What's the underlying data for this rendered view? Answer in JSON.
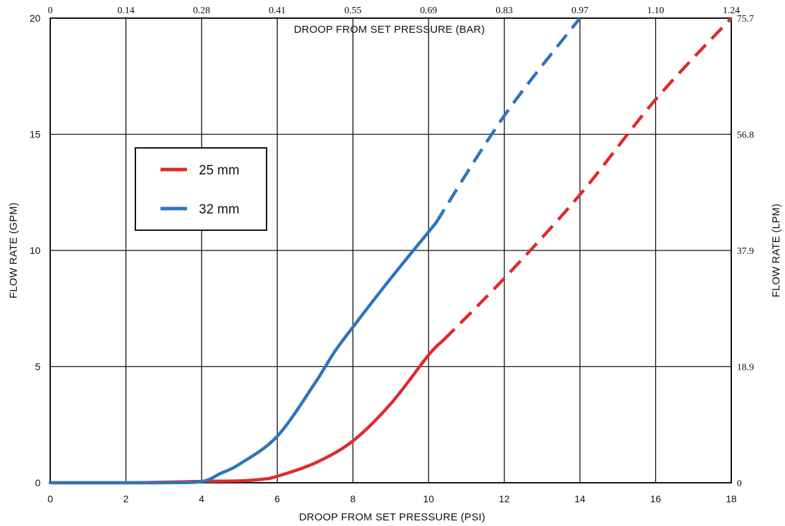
{
  "chart_data": {
    "type": "line",
    "title": "",
    "xlabel": "DROOP FROM SET PRESSURE (PSI)",
    "x2label": "DROOP FROM SET PRESSURE (BAR)",
    "ylabel": "FLOW RATE (GPM)",
    "y2label": "FLOW RATE (LPM)",
    "xlim": [
      0,
      18
    ],
    "ylim": [
      0,
      20
    ],
    "x_ticks": [
      "0",
      "2",
      "4",
      "6",
      "8",
      "10",
      "12",
      "14",
      "16",
      "18"
    ],
    "x2_ticks": [
      "0",
      "0.14",
      "0.28",
      "0.41",
      "0.55",
      "0.69",
      "0.83",
      "0.97",
      "1.10",
      "1.24"
    ],
    "y_ticks": [
      "0",
      "5",
      "10",
      "15",
      "20"
    ],
    "y2_ticks": [
      "0",
      "18.9",
      "37.9",
      "56.8",
      "75.7"
    ],
    "grid": true,
    "legend_position": "upper-left",
    "series": [
      {
        "name": "25 mm",
        "color": "#dd2b2b",
        "solid_points": [
          [
            0,
            0
          ],
          [
            2,
            0
          ],
          [
            3,
            0.02
          ],
          [
            4,
            0.06
          ],
          [
            5,
            0.08
          ],
          [
            5.6,
            0.15
          ],
          [
            6,
            0.28
          ],
          [
            7,
            0.85
          ],
          [
            8,
            1.8
          ],
          [
            9,
            3.4
          ],
          [
            10,
            5.5
          ],
          [
            10.4,
            6.15
          ]
        ],
        "dashed_points": [
          [
            10.4,
            6.15
          ],
          [
            12,
            8.8
          ],
          [
            14,
            12.4
          ],
          [
            16,
            16.5
          ],
          [
            18,
            20
          ]
        ]
      },
      {
        "name": "32 mm",
        "color": "#2f73bd",
        "solid_points": [
          [
            0,
            0
          ],
          [
            2,
            0
          ],
          [
            3,
            0
          ],
          [
            4,
            0.05
          ],
          [
            4.5,
            0.4
          ],
          [
            5,
            0.8
          ],
          [
            6,
            2.0
          ],
          [
            7,
            4.3
          ],
          [
            7.5,
            5.6
          ],
          [
            8,
            6.7
          ],
          [
            9,
            8.8
          ],
          [
            10,
            10.8
          ],
          [
            10.2,
            11.2
          ]
        ],
        "dashed_points": [
          [
            10.2,
            11.2
          ],
          [
            12,
            15.8
          ],
          [
            14,
            20
          ]
        ]
      }
    ]
  }
}
